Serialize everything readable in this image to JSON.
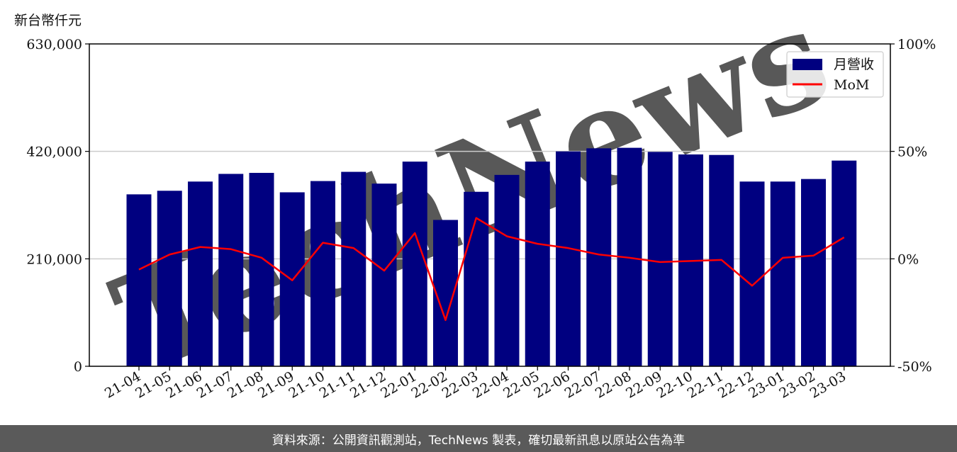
{
  "y_unit_label": "新台幣仟元",
  "footer_text": "資料來源：公開資訊觀測站，TechNews 製表，確切最新訊息以原站公告為準",
  "watermark_text": "TechNews",
  "colors": {
    "bar": "#000080",
    "line": "#ff0000",
    "grid": "#cccccc",
    "watermark": "#f2e4e4",
    "footer_bg": "#5a5a5a"
  },
  "chart_data": {
    "type": "bar",
    "categories": [
      "21-04",
      "21-05",
      "21-06",
      "21-07",
      "21-08",
      "21-09",
      "21-10",
      "21-11",
      "21-12",
      "22-01",
      "22-02",
      "22-03",
      "22-04",
      "22-05",
      "22-06",
      "22-07",
      "22-08",
      "22-09",
      "22-10",
      "22-11",
      "22-12",
      "23-01",
      "23-02",
      "23-03"
    ],
    "series": [
      {
        "name": "月營收",
        "type": "bar",
        "axis": "left",
        "values": [
          336000,
          343000,
          361000,
          376000,
          378000,
          340000,
          362000,
          380000,
          357000,
          400000,
          286000,
          341000,
          374000,
          400000,
          420000,
          426000,
          427000,
          419000,
          414000,
          413000,
          361000,
          361000,
          366000,
          402000
        ]
      },
      {
        "name": "MoM",
        "type": "line",
        "axis": "right",
        "values": [
          -5,
          2,
          5.5,
          4.5,
          0.5,
          -10,
          7.5,
          5,
          -5.5,
          12,
          -28.5,
          19,
          10.5,
          7,
          5,
          2,
          0.5,
          -1.5,
          -1,
          -0.5,
          -12.5,
          0.5,
          1.5,
          10
        ]
      }
    ],
    "y_left": {
      "min": 0,
      "max": 630000,
      "ticks": [
        0,
        210000,
        420000,
        630000
      ],
      "tick_labels": [
        "0",
        "210,000",
        "420,000",
        "630,000"
      ]
    },
    "y_right": {
      "min": -50,
      "max": 100,
      "ticks": [
        -50,
        0,
        50,
        100
      ],
      "tick_labels": [
        "-50%",
        "0%",
        "50%",
        "100%"
      ]
    },
    "grid": "horizontal",
    "legend_position": "top-right"
  }
}
